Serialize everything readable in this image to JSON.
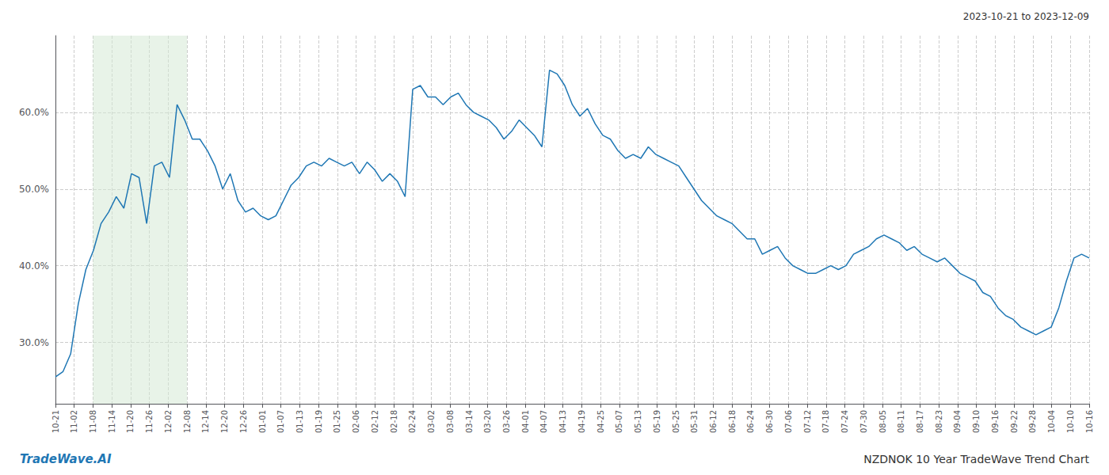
{
  "chart_data": {
    "type": "line",
    "title": "NZDNOK 10 Year TradeWave Trend Chart",
    "subtitle": "2023-10-21 to 2023-12-09",
    "annotations": [
      {
        "text": "TradeWave.AI",
        "color": "#1f77b4"
      }
    ],
    "color": "#1f77b4",
    "grid": true,
    "xlim": [
      0,
      136
    ],
    "xticks": [
      {
        "value": 0,
        "label": "10-21"
      },
      {
        "value": 2.472727,
        "label": "11-02"
      },
      {
        "value": 4.945455,
        "label": "11-08"
      },
      {
        "value": 7.418182,
        "label": "11-14"
      },
      {
        "value": 9.890909,
        "label": "11-20"
      },
      {
        "value": 12.363636,
        "label": "11-26"
      },
      {
        "value": 14.836364,
        "label": "12-02"
      },
      {
        "value": 17.309091,
        "label": "12-08"
      },
      {
        "value": 19.781818,
        "label": "12-14"
      },
      {
        "value": 22.254545,
        "label": "12-20"
      },
      {
        "value": 24.727273,
        "label": "12-26"
      },
      {
        "value": 27.2,
        "label": "01-01"
      },
      {
        "value": 29.672727,
        "label": "01-07"
      },
      {
        "value": 32.145455,
        "label": "01-13"
      },
      {
        "value": 34.618182,
        "label": "01-19"
      },
      {
        "value": 37.090909,
        "label": "01-25"
      },
      {
        "value": 39.563636,
        "label": "02-06"
      },
      {
        "value": 42.036364,
        "label": "02-12"
      },
      {
        "value": 44.509091,
        "label": "02-18"
      },
      {
        "value": 46.981818,
        "label": "02-24"
      },
      {
        "value": 49.454545,
        "label": "03-02"
      },
      {
        "value": 51.927273,
        "label": "03-08"
      },
      {
        "value": 54.4,
        "label": "03-14"
      },
      {
        "value": 56.872727,
        "label": "03-20"
      },
      {
        "value": 59.345455,
        "label": "03-26"
      },
      {
        "value": 61.818182,
        "label": "04-01"
      },
      {
        "value": 64.290909,
        "label": "04-07"
      },
      {
        "value": 66.763636,
        "label": "04-13"
      },
      {
        "value": 69.236364,
        "label": "04-19"
      },
      {
        "value": 71.709091,
        "label": "04-25"
      },
      {
        "value": 74.181818,
        "label": "05-07"
      },
      {
        "value": 76.654545,
        "label": "05-13"
      },
      {
        "value": 79.127273,
        "label": "05-19"
      },
      {
        "value": 81.6,
        "label": "05-25"
      },
      {
        "value": 84.072727,
        "label": "05-31"
      },
      {
        "value": 86.545455,
        "label": "06-12"
      },
      {
        "value": 89.018182,
        "label": "06-18"
      },
      {
        "value": 91.490909,
        "label": "06-24"
      },
      {
        "value": 93.963636,
        "label": "06-30"
      },
      {
        "value": 96.436364,
        "label": "07-06"
      },
      {
        "value": 98.909091,
        "label": "07-12"
      },
      {
        "value": 101.381818,
        "label": "07-18"
      },
      {
        "value": 103.854545,
        "label": "07-24"
      },
      {
        "value": 106.327273,
        "label": "07-30"
      },
      {
        "value": 108.8,
        "label": "08-05"
      },
      {
        "value": 111.272727,
        "label": "08-11"
      },
      {
        "value": 113.745455,
        "label": "08-17"
      },
      {
        "value": 116.218182,
        "label": "08-23"
      },
      {
        "value": 118.690909,
        "label": "09-04"
      },
      {
        "value": 121.163636,
        "label": "09-10"
      },
      {
        "value": 123.636364,
        "label": "09-16"
      },
      {
        "value": 126.109091,
        "label": "09-22"
      },
      {
        "value": 128.581818,
        "label": "09-28"
      },
      {
        "value": 131.054545,
        "label": "10-04"
      },
      {
        "value": 133.527273,
        "label": "10-10"
      },
      {
        "value": 136,
        "label": "10-16"
      }
    ],
    "highlight": {
      "from": "11-08",
      "to": "12-08",
      "color": "#d6ead6"
    },
    "ylim": [
      22,
      70
    ],
    "yticks": [
      {
        "value": 30,
        "label": "30.0%"
      },
      {
        "value": 40,
        "label": "40.0%"
      },
      {
        "value": 50,
        "label": "50.0%"
      },
      {
        "value": 60,
        "label": "60.0%"
      }
    ],
    "values": [
      25.5,
      26.2,
      28.5,
      35.0,
      39.5,
      42.0,
      45.5,
      47.0,
      49.0,
      47.5,
      52.0,
      51.5,
      45.5,
      53.0,
      53.5,
      51.5,
      61.0,
      59.0,
      56.5,
      56.5,
      55.0,
      53.0,
      50.0,
      52.0,
      48.5,
      47.0,
      47.5,
      46.5,
      46.0,
      46.5,
      48.5,
      50.5,
      51.5,
      53.0,
      53.5,
      53.0,
      54.0,
      53.5,
      53.0,
      53.5,
      52.0,
      53.5,
      52.5,
      51.0,
      52.0,
      51.0,
      49.0,
      63.0,
      63.5,
      62.0,
      62.0,
      61.0,
      62.0,
      62.5,
      61.0,
      60.0,
      59.5,
      59.0,
      58.0,
      56.5,
      57.5,
      59.0,
      58.0,
      57.0,
      55.5,
      65.5,
      65.0,
      63.5,
      61.0,
      59.5,
      60.5,
      58.5,
      57.0,
      56.5,
      55.0,
      54.0,
      54.5,
      54.0,
      55.5,
      54.5,
      54.0,
      53.5,
      53.0,
      51.5,
      50.0,
      48.5,
      47.5,
      46.5,
      46.0,
      45.5,
      44.5,
      43.5,
      43.5,
      41.5,
      42.0,
      42.5,
      41.0,
      40.0,
      39.5,
      39.0,
      39.0,
      39.5,
      40.0,
      39.5,
      40.0,
      41.5,
      42.0,
      42.5,
      43.5,
      44.0,
      43.5,
      43.0,
      42.0,
      42.5,
      41.5,
      41.0,
      40.5,
      41.0,
      40.0,
      39.0,
      38.5,
      38.0,
      36.5,
      36.0,
      34.5,
      33.5,
      33.0,
      32.0,
      31.5,
      31.0,
      31.5,
      32.0,
      34.5,
      38.0,
      41.0,
      41.5,
      41.0
    ]
  }
}
